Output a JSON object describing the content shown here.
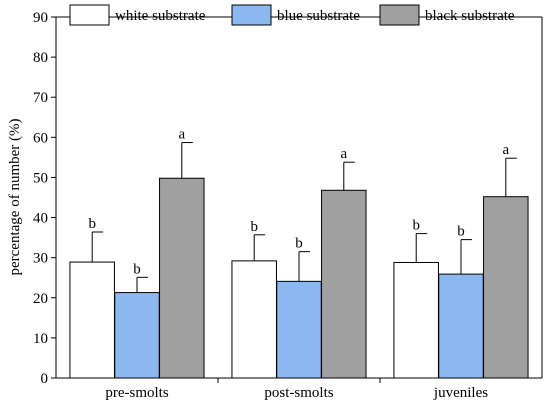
{
  "chart_data": {
    "type": "bar",
    "ylabel": "percentage of number (%)",
    "ylim": [
      0,
      90
    ],
    "yticks": [
      0,
      10,
      20,
      30,
      40,
      50,
      60,
      70,
      80,
      90
    ],
    "categories": [
      "pre-smolts",
      "post-smolts",
      "juveniles"
    ],
    "legend_position": "top",
    "grid": false,
    "series": [
      {
        "name": "white substrate",
        "color": "#ffffff",
        "values": [
          28.9,
          29.2,
          28.8
        ],
        "errors": [
          7.5,
          6.5,
          7.2
        ],
        "labels": [
          "b",
          "b",
          "b"
        ]
      },
      {
        "name": "blue substrate",
        "color": "#8cb8f2",
        "values": [
          21.3,
          24.1,
          25.9
        ],
        "errors": [
          3.8,
          7.4,
          8.6
        ],
        "labels": [
          "b",
          "b",
          "b"
        ]
      },
      {
        "name": "black substrate",
        "color": "#a0a0a0",
        "values": [
          49.8,
          46.8,
          45.2
        ],
        "errors": [
          8.9,
          7.0,
          9.6
        ],
        "labels": [
          "a",
          "a",
          "a"
        ]
      }
    ]
  }
}
